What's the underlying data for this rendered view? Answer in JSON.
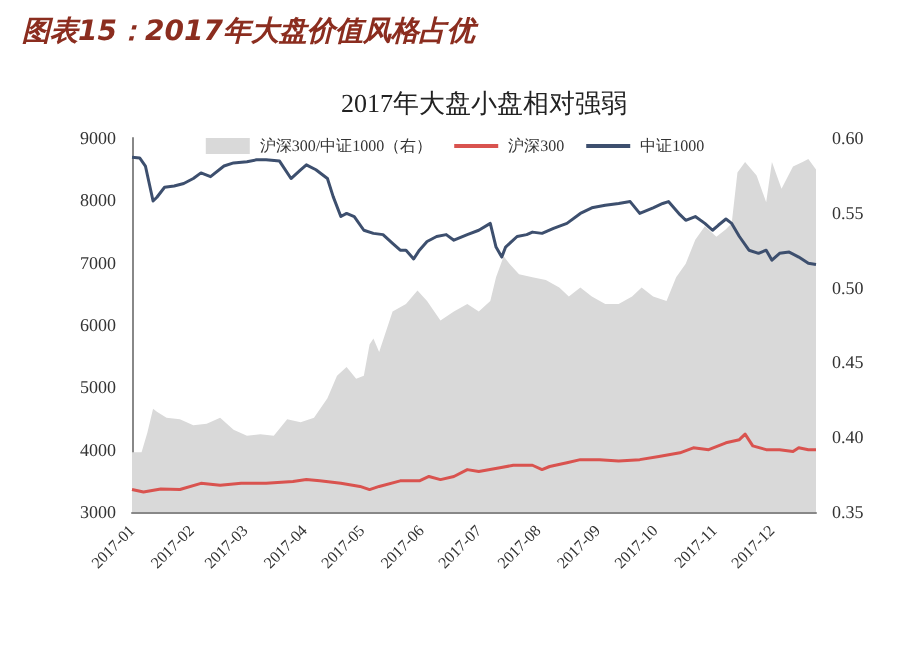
{
  "chart_data": {
    "type": "line",
    "title": "图表15：2017年大盘价值风格占优",
    "subtitle": "2017年大盘小盘相对强弱",
    "legend": "top",
    "grid": false,
    "xlim": [
      "2017-01-01",
      "2017-12-24"
    ],
    "xticks": [
      {
        "value": "2017-01-01",
        "label": "2017-01"
      },
      {
        "value": "2017-02-01",
        "label": "2017-02"
      },
      {
        "value": "2017-03-01",
        "label": "2017-03"
      },
      {
        "value": "2017-04-01",
        "label": "2017-04"
      },
      {
        "value": "2017-05-01",
        "label": "2017-05"
      },
      {
        "value": "2017-06-01",
        "label": "2017-06"
      },
      {
        "value": "2017-07-01",
        "label": "2017-07"
      },
      {
        "value": "2017-08-01",
        "label": "2017-08"
      },
      {
        "value": "2017-09-01",
        "label": "2017-09"
      },
      {
        "value": "2017-10-01",
        "label": "2017-10"
      },
      {
        "value": "2017-11-01",
        "label": "2017-11"
      },
      {
        "value": "2017-12-01",
        "label": "2017-12"
      }
    ],
    "ylim": [
      3000,
      9000
    ],
    "yticks": [
      3000,
      4000,
      5000,
      6000,
      7000,
      8000,
      9000
    ],
    "y2lim": [
      0.35,
      0.6
    ],
    "y2ticks": [
      {
        "value": 0.35,
        "label": "0.35"
      },
      {
        "value": 0.4,
        "label": "0.40"
      },
      {
        "value": 0.45,
        "label": "0.45"
      },
      {
        "value": 0.5,
        "label": "0.50"
      },
      {
        "value": 0.55,
        "label": "0.55"
      },
      {
        "value": 0.6,
        "label": "0.60"
      }
    ],
    "series": [
      {
        "name": "沪深300/中证1000（右）",
        "type": "area",
        "axis": "y2",
        "color": "#d9d9d9",
        "x": [
          "2017-01-01",
          "2017-01-06",
          "2017-01-09",
          "2017-01-12",
          "2017-01-14",
          "2017-01-19",
          "2017-01-26",
          "2017-02-02",
          "2017-02-09",
          "2017-02-16",
          "2017-02-23",
          "2017-03-02",
          "2017-03-09",
          "2017-03-16",
          "2017-03-23",
          "2017-03-30",
          "2017-04-06",
          "2017-04-13",
          "2017-04-18",
          "2017-04-23",
          "2017-04-28",
          "2017-05-02",
          "2017-05-05",
          "2017-05-07",
          "2017-05-10",
          "2017-05-17",
          "2017-05-24",
          "2017-05-30",
          "2017-06-04",
          "2017-06-11",
          "2017-06-18",
          "2017-06-25",
          "2017-07-01",
          "2017-07-07",
          "2017-07-10",
          "2017-07-14",
          "2017-07-17",
          "2017-07-22",
          "2017-07-29",
          "2017-08-05",
          "2017-08-12",
          "2017-08-17",
          "2017-08-23",
          "2017-08-29",
          "2017-09-05",
          "2017-09-12",
          "2017-09-19",
          "2017-09-24",
          "2017-09-30",
          "2017-10-07",
          "2017-10-12",
          "2017-10-17",
          "2017-10-22",
          "2017-10-27",
          "2017-11-02",
          "2017-11-07",
          "2017-11-10",
          "2017-11-13",
          "2017-11-17",
          "2017-11-23",
          "2017-11-28",
          "2017-12-01",
          "2017-12-06",
          "2017-12-12",
          "2017-12-17",
          "2017-12-20",
          "2017-12-24"
        ],
        "values": [
          0.39,
          0.39,
          0.403,
          0.419,
          0.417,
          0.413,
          0.412,
          0.408,
          0.409,
          0.413,
          0.405,
          0.401,
          0.402,
          0.401,
          0.412,
          0.41,
          0.413,
          0.426,
          0.441,
          0.447,
          0.439,
          0.441,
          0.462,
          0.466,
          0.457,
          0.484,
          0.489,
          0.498,
          0.491,
          0.478,
          0.484,
          0.489,
          0.484,
          0.491,
          0.507,
          0.521,
          0.516,
          0.509,
          0.507,
          0.505,
          0.5,
          0.494,
          0.5,
          0.494,
          0.489,
          0.489,
          0.494,
          0.5,
          0.494,
          0.491,
          0.507,
          0.516,
          0.532,
          0.541,
          0.534,
          0.539,
          0.543,
          0.577,
          0.584,
          0.575,
          0.557,
          0.584,
          0.566,
          0.581,
          0.584,
          0.586,
          0.579
        ]
      },
      {
        "name": "沪深300",
        "color": "#d9534f",
        "x": [
          "2017-01-01",
          "2017-01-07",
          "2017-01-16",
          "2017-01-26",
          "2017-02-06",
          "2017-02-16",
          "2017-02-27",
          "2017-03-12",
          "2017-03-26",
          "2017-04-02",
          "2017-04-09",
          "2017-04-20",
          "2017-04-30",
          "2017-05-05",
          "2017-05-10",
          "2017-05-21",
          "2017-05-31",
          "2017-06-05",
          "2017-06-11",
          "2017-06-18",
          "2017-06-25",
          "2017-07-01",
          "2017-07-12",
          "2017-07-19",
          "2017-07-29",
          "2017-08-03",
          "2017-08-07",
          "2017-08-16",
          "2017-08-23",
          "2017-09-02",
          "2017-09-12",
          "2017-09-23",
          "2017-10-03",
          "2017-10-14",
          "2017-10-21",
          "2017-10-29",
          "2017-11-07",
          "2017-11-14",
          "2017-11-17",
          "2017-11-21",
          "2017-11-28",
          "2017-12-05",
          "2017-12-12",
          "2017-12-15",
          "2017-12-20",
          "2017-12-24"
        ],
        "values": [
          3360,
          3320,
          3370,
          3360,
          3460,
          3430,
          3460,
          3460,
          3490,
          3520,
          3500,
          3460,
          3410,
          3360,
          3410,
          3500,
          3500,
          3570,
          3520,
          3570,
          3680,
          3650,
          3710,
          3750,
          3750,
          3680,
          3730,
          3790,
          3840,
          3840,
          3820,
          3840,
          3890,
          3950,
          4030,
          4000,
          4110,
          4160,
          4250,
          4060,
          4000,
          4000,
          3970,
          4030,
          4000,
          4000
        ]
      },
      {
        "name": "中证1000",
        "color": "#3d4f6e",
        "x": [
          "2017-01-01",
          "2017-01-05",
          "2017-01-08",
          "2017-01-12",
          "2017-01-14",
          "2017-01-18",
          "2017-01-23",
          "2017-01-28",
          "2017-02-02",
          "2017-02-06",
          "2017-02-11",
          "2017-02-18",
          "2017-02-23",
          "2017-03-02",
          "2017-03-07",
          "2017-03-12",
          "2017-03-19",
          "2017-03-25",
          "2017-03-30",
          "2017-04-02",
          "2017-04-07",
          "2017-04-13",
          "2017-04-16",
          "2017-04-20",
          "2017-04-23",
          "2017-04-27",
          "2017-05-02",
          "2017-05-07",
          "2017-05-12",
          "2017-05-17",
          "2017-05-21",
          "2017-05-24",
          "2017-05-28",
          "2017-05-31",
          "2017-06-04",
          "2017-06-09",
          "2017-06-14",
          "2017-06-18",
          "2017-06-25",
          "2017-07-01",
          "2017-07-07",
          "2017-07-10",
          "2017-07-13",
          "2017-07-15",
          "2017-07-21",
          "2017-07-26",
          "2017-07-29",
          "2017-08-03",
          "2017-08-09",
          "2017-08-16",
          "2017-08-23",
          "2017-08-29",
          "2017-09-05",
          "2017-09-12",
          "2017-09-18",
          "2017-09-23",
          "2017-09-30",
          "2017-10-05",
          "2017-10-08",
          "2017-10-14",
          "2017-10-17",
          "2017-10-22",
          "2017-10-27",
          "2017-10-31",
          "2017-11-03",
          "2017-11-07",
          "2017-11-10",
          "2017-11-14",
          "2017-11-19",
          "2017-11-24",
          "2017-11-28",
          "2017-12-01",
          "2017-12-05",
          "2017-12-10",
          "2017-12-15",
          "2017-12-20",
          "2017-12-24"
        ],
        "values": [
          8690,
          8680,
          8550,
          7990,
          8050,
          8210,
          8230,
          8270,
          8350,
          8440,
          8380,
          8550,
          8600,
          8620,
          8650,
          8650,
          8630,
          8350,
          8490,
          8570,
          8490,
          8350,
          8060,
          7740,
          7790,
          7740,
          7520,
          7470,
          7450,
          7310,
          7200,
          7200,
          7060,
          7200,
          7340,
          7420,
          7450,
          7360,
          7450,
          7520,
          7630,
          7250,
          7090,
          7250,
          7420,
          7450,
          7490,
          7470,
          7550,
          7630,
          7790,
          7880,
          7920,
          7950,
          7980,
          7790,
          7880,
          7950,
          7980,
          7770,
          7680,
          7740,
          7630,
          7520,
          7600,
          7700,
          7630,
          7420,
          7200,
          7150,
          7200,
          7040,
          7150,
          7170,
          7090,
          6990,
          6970
        ]
      }
    ]
  }
}
